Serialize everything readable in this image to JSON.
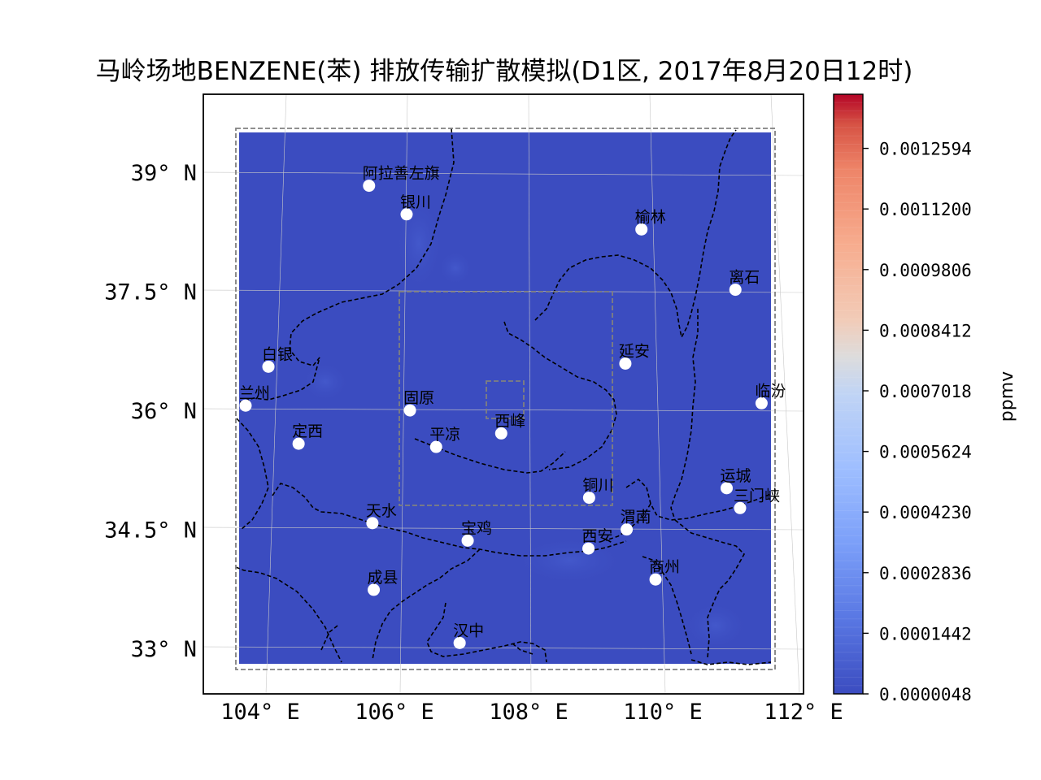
{
  "title": "马岭场地BENZENE(苯) 排放传输扩散模拟(D1区, 2017年8月20日12时)",
  "map": {
    "lat_ticks": [
      {
        "value": 39.0,
        "label": "39° N"
      },
      {
        "value": 37.5,
        "label": "37.5° N"
      },
      {
        "value": 36.0,
        "label": "36° N"
      },
      {
        "value": 34.5,
        "label": "34.5° N"
      },
      {
        "value": 33.0,
        "label": "33° N"
      }
    ],
    "lon_ticks": [
      {
        "value": 104,
        "label": "104° E"
      },
      {
        "value": 106,
        "label": "106° E"
      },
      {
        "value": 108,
        "label": "108° E"
      },
      {
        "value": 110,
        "label": "110° E"
      },
      {
        "value": 112,
        "label": "112° E"
      }
    ],
    "field_color": "#3b4cc0",
    "cities": [
      {
        "name": "阿拉善左旗",
        "lon": 105.67,
        "lat": 38.83
      },
      {
        "name": "银川",
        "lon": 106.23,
        "lat": 38.47
      },
      {
        "name": "榆林",
        "lon": 109.73,
        "lat": 38.28
      },
      {
        "name": "离石",
        "lon": 111.13,
        "lat": 37.52
      },
      {
        "name": "白银",
        "lon": 104.17,
        "lat": 36.55
      },
      {
        "name": "延安",
        "lon": 109.49,
        "lat": 36.59
      },
      {
        "name": "兰州",
        "lon": 103.83,
        "lat": 36.06
      },
      {
        "name": "临汾",
        "lon": 111.52,
        "lat": 36.09
      },
      {
        "name": "固原",
        "lon": 106.28,
        "lat": 36.0
      },
      {
        "name": "西峰",
        "lon": 107.64,
        "lat": 35.71
      },
      {
        "name": "定西",
        "lon": 104.62,
        "lat": 35.58
      },
      {
        "name": "平凉",
        "lon": 106.67,
        "lat": 35.54
      },
      {
        "name": "铜川",
        "lon": 108.95,
        "lat": 34.9
      },
      {
        "name": "运城",
        "lon": 111.0,
        "lat": 35.02
      },
      {
        "name": "三门峡",
        "lon": 111.2,
        "lat": 34.77
      },
      {
        "name": "天水",
        "lon": 105.72,
        "lat": 34.58
      },
      {
        "name": "渭南",
        "lon": 109.51,
        "lat": 34.5
      },
      {
        "name": "宝鸡",
        "lon": 107.14,
        "lat": 34.36
      },
      {
        "name": "西安",
        "lon": 108.94,
        "lat": 34.26
      },
      {
        "name": "商州",
        "lon": 109.94,
        "lat": 33.87
      },
      {
        "name": "成县",
        "lon": 105.74,
        "lat": 33.74
      },
      {
        "name": "汉中",
        "lon": 107.02,
        "lat": 33.07
      }
    ]
  },
  "colorbar": {
    "label": "ppmv",
    "colormap": "coolwarm",
    "ticks": [
      {
        "value": 4.8e-06,
        "label": "0.0000048"
      },
      {
        "value": 0.0001442,
        "label": "0.0001442"
      },
      {
        "value": 0.0002836,
        "label": "0.0002836"
      },
      {
        "value": 0.000423,
        "label": "0.0004230"
      },
      {
        "value": 0.0005624,
        "label": "0.0005624"
      },
      {
        "value": 0.0007018,
        "label": "0.0007018"
      },
      {
        "value": 0.0008412,
        "label": "0.0008412"
      },
      {
        "value": 0.0009806,
        "label": "0.0009806"
      },
      {
        "value": 0.00112,
        "label": "0.0011200"
      },
      {
        "value": 0.0012594,
        "label": "0.0012594"
      }
    ]
  }
}
